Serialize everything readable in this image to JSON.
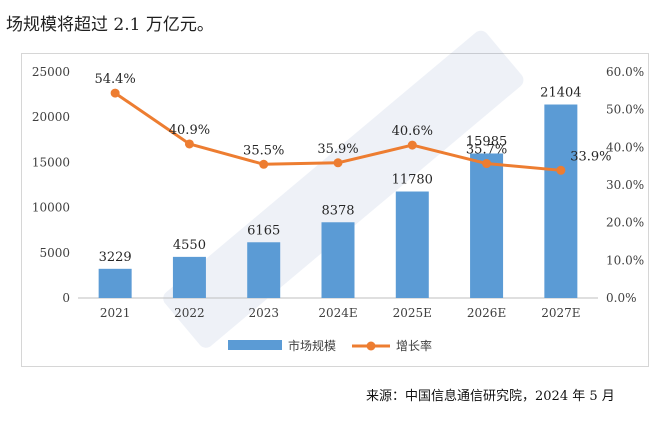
{
  "intro_text": "场规模将超过 2.1 万亿元。",
  "source_text": "来源：中国信息通信研究院，2024 年 5 月",
  "colors": {
    "bar": "#5b9bd5",
    "line": "#ed7d31",
    "watermark": "#1f4e9e"
  },
  "chart_data": {
    "type": "bar",
    "title": "",
    "categories": [
      "2021",
      "2022",
      "2023",
      "2024E",
      "2025E",
      "2026E",
      "2027E"
    ],
    "series": [
      {
        "name": "市场规模",
        "type": "bar",
        "axis": "left",
        "values": [
          3229,
          4550,
          6165,
          8378,
          11780,
          15985,
          21404
        ],
        "labels": [
          "3229",
          "4550",
          "6165",
          "8378",
          "11780",
          "15985",
          "21404"
        ]
      },
      {
        "name": "增长率",
        "type": "line",
        "axis": "right",
        "values": [
          54.4,
          40.9,
          35.5,
          35.9,
          40.6,
          35.7,
          33.9
        ],
        "labels": [
          "54.4%",
          "40.9%",
          "35.5%",
          "35.9%",
          "40.6%",
          "35.7%",
          "33.9%"
        ]
      }
    ],
    "y_left": {
      "ylim": [
        0,
        25000
      ],
      "ticks": [
        "0",
        "5000",
        "10000",
        "15000",
        "20000",
        "25000"
      ]
    },
    "y_right": {
      "ylim": [
        0,
        60
      ],
      "ticks": [
        "0.0%",
        "10.0%",
        "20.0%",
        "30.0%",
        "40.0%",
        "50.0%",
        "60.0%"
      ]
    },
    "legend": {
      "position": "bottom",
      "items": [
        "市场规模",
        "增长率"
      ]
    },
    "grid": false
  }
}
